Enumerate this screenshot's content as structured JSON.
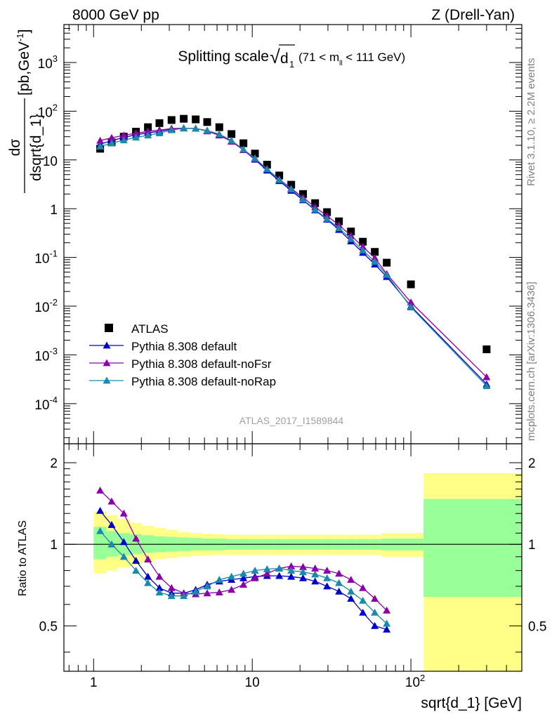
{
  "header": {
    "beam": "8000 GeV pp",
    "process": "Z (Drell-Yan)",
    "title_main": "Splitting scale",
    "title_sqrt_sym": "√",
    "title_d": "d",
    "title_d_sub": "1",
    "title_range_pre": "(71 < m",
    "title_range_sub": "ll",
    "title_range_post": " < 111 GeV)"
  },
  "side_labels": {
    "rivet": "Rivet 3.1.10, ≥ 2.2M events",
    "mcplots": "mcplots.cern.ch [arXiv:1306.3436]"
  },
  "watermark": "ATLAS_2017_I1589844",
  "colors": {
    "atlas": "#000000",
    "default": "#0000cc",
    "noFsr": "#8b00a8",
    "noRap": "#1a8aaa",
    "band_inner": "#99ff99",
    "band_outer": "#ffff88"
  },
  "chart_data": [
    {
      "type": "scatter",
      "panel": "main",
      "ylabel_num": "dσ",
      "ylabel_den": "dsqrt{d_1}",
      "ylabel_unit_pre": "[pb,GeV",
      "ylabel_unit_sup": "-1",
      "ylabel_unit_post": "]",
      "xlim": [
        0.65,
        500
      ],
      "ylim": [
        1.5e-05,
        6000
      ],
      "xscale": "log",
      "yscale": "log",
      "y_ticks": [
        {
          "base": "10",
          "exp": "-4",
          "v": 0.0001
        },
        {
          "base": "10",
          "exp": "-3",
          "v": 0.001
        },
        {
          "base": "10",
          "exp": "-2",
          "v": 0.01
        },
        {
          "base": "10",
          "exp": "-1",
          "v": 0.1
        },
        {
          "base": "1",
          "exp": "",
          "v": 1
        },
        {
          "base": "10",
          "exp": "",
          "v": 10
        },
        {
          "base": "10",
          "exp": "2",
          "v": 100
        },
        {
          "base": "10",
          "exp": "3",
          "v": 1000
        }
      ],
      "legend_position": "bottom-left",
      "series": [
        {
          "name": "ATLAS",
          "color": "#000000",
          "marker": "square",
          "line": false,
          "x": [
            1.1,
            1.3,
            1.55,
            1.85,
            2.2,
            2.6,
            3.1,
            3.7,
            4.4,
            5.2,
            6.2,
            7.4,
            8.8,
            10.4,
            12.4,
            14.8,
            17.6,
            20.9,
            24.9,
            29.6,
            35.2,
            41.9,
            49.8,
            59.2,
            70.4,
            100,
            300
          ],
          "y": [
            17,
            23,
            30,
            38,
            47,
            57,
            66,
            70,
            68,
            60,
            47,
            34,
            22,
            13.5,
            8.0,
            4.8,
            3.1,
            2.0,
            1.3,
            0.85,
            0.55,
            0.34,
            0.21,
            0.13,
            0.078,
            0.028,
            0.0013
          ]
        },
        {
          "name": "Pythia 8.308 default",
          "color": "#0000cc",
          "marker": "triangle",
          "line": true,
          "x": [
            1.1,
            1.3,
            1.55,
            1.85,
            2.2,
            2.6,
            3.1,
            3.7,
            4.4,
            5.2,
            6.2,
            7.4,
            8.8,
            10.4,
            12.4,
            14.8,
            17.6,
            20.9,
            24.9,
            29.6,
            35.2,
            41.9,
            49.8,
            59.2,
            70.4,
            100,
            300
          ],
          "y": [
            21,
            25,
            29,
            33,
            36,
            38.5,
            43,
            45,
            44,
            40,
            33,
            24,
            16,
            10.2,
            6.1,
            3.7,
            2.35,
            1.5,
            0.93,
            0.6,
            0.37,
            0.215,
            0.125,
            0.072,
            0.04,
            0.01,
            0.00025
          ]
        },
        {
          "name": "Pythia 8.308 default-noFsr",
          "color": "#8b00a8",
          "marker": "triangle",
          "line": true,
          "x": [
            1.1,
            1.3,
            1.55,
            1.85,
            2.2,
            2.6,
            3.1,
            3.7,
            4.4,
            5.2,
            6.2,
            7.4,
            8.8,
            10.4,
            12.4,
            14.8,
            17.6,
            20.9,
            24.9,
            29.6,
            35.2,
            41.9,
            49.8,
            59.2,
            70.4,
            100,
            300
          ],
          "y": [
            25,
            28.5,
            32,
            35.5,
            38.5,
            41,
            44,
            45,
            44,
            39,
            32,
            24,
            16,
            10.4,
            6.5,
            4.0,
            2.6,
            1.7,
            1.08,
            0.71,
            0.46,
            0.28,
            0.165,
            0.098,
            0.046,
            0.012,
            0.00035
          ]
        },
        {
          "name": "Pythia 8.308 default-noRap",
          "color": "#1a8aaa",
          "marker": "triangle",
          "line": true,
          "x": [
            1.1,
            1.3,
            1.55,
            1.85,
            2.2,
            2.6,
            3.1,
            3.7,
            4.4,
            5.2,
            6.2,
            7.4,
            8.8,
            10.4,
            12.4,
            14.8,
            17.6,
            20.9,
            24.9,
            29.6,
            35.2,
            41.9,
            49.8,
            59.2,
            70.4,
            100,
            300
          ],
          "y": [
            19,
            22,
            25.5,
            29,
            32,
            35.5,
            41,
            44.5,
            44,
            40,
            34,
            25,
            16.5,
            10.9,
            6.5,
            3.9,
            2.5,
            1.55,
            0.96,
            0.62,
            0.4,
            0.24,
            0.14,
            0.082,
            0.044,
            0.0095,
            0.00023
          ]
        }
      ]
    },
    {
      "type": "line",
      "panel": "ratio",
      "ylabel": "Ratio to ATLAS",
      "xlabel": "sqrt{d_1} [GeV]",
      "xlim": [
        0.65,
        500
      ],
      "ylim": [
        0.34,
        2.35
      ],
      "xscale": "log",
      "yscale": "log",
      "y_ticks": [
        {
          "label": "0.5",
          "v": 0.5
        },
        {
          "label": "1",
          "v": 1
        },
        {
          "label": "2",
          "v": 2
        }
      ],
      "x_ticks": [
        {
          "base": "1",
          "exp": "",
          "v": 1
        },
        {
          "base": "10",
          "exp": "",
          "v": 10
        },
        {
          "base": "10",
          "exp": "2",
          "v": 100
        }
      ],
      "bands": {
        "edges": [
          1,
          1.2,
          1.42,
          1.7,
          2.02,
          2.4,
          2.85,
          3.4,
          4.05,
          4.8,
          5.7,
          6.8,
          8.1,
          9.6,
          11.4,
          13.6,
          16.2,
          19.3,
          22.9,
          27.3,
          32.5,
          38.6,
          45.9,
          54.6,
          65,
          77.4,
          120,
          500
        ],
        "inner_lo": [
          0.88,
          0.9,
          0.91,
          0.92,
          0.93,
          0.935,
          0.94,
          0.945,
          0.95,
          0.95,
          0.95,
          0.955,
          0.955,
          0.955,
          0.955,
          0.955,
          0.955,
          0.955,
          0.955,
          0.955,
          0.955,
          0.955,
          0.955,
          0.955,
          0.95,
          0.95,
          0.64
        ],
        "inner_hi": [
          1.16,
          1.12,
          1.1,
          1.09,
          1.08,
          1.07,
          1.065,
          1.06,
          1.055,
          1.05,
          1.05,
          1.045,
          1.045,
          1.045,
          1.045,
          1.045,
          1.045,
          1.045,
          1.045,
          1.045,
          1.045,
          1.045,
          1.045,
          1.045,
          1.05,
          1.05,
          1.47
        ],
        "outer_lo": [
          0.78,
          0.8,
          0.82,
          0.84,
          0.86,
          0.88,
          0.89,
          0.9,
          0.905,
          0.91,
          0.915,
          0.915,
          0.915,
          0.915,
          0.915,
          0.915,
          0.915,
          0.915,
          0.915,
          0.915,
          0.915,
          0.915,
          0.915,
          0.915,
          0.9,
          0.9,
          0.34
        ],
        "outer_hi": [
          1.32,
          1.28,
          1.24,
          1.2,
          1.17,
          1.15,
          1.13,
          1.11,
          1.1,
          1.095,
          1.09,
          1.085,
          1.085,
          1.085,
          1.085,
          1.085,
          1.085,
          1.085,
          1.085,
          1.085,
          1.085,
          1.085,
          1.085,
          1.085,
          1.1,
          1.1,
          1.83
        ]
      },
      "series": [
        {
          "name": "Pythia 8.308 default",
          "color": "#0000cc",
          "x": [
            1.1,
            1.3,
            1.55,
            1.85,
            2.2,
            2.6,
            3.1,
            3.7,
            4.4,
            5.2,
            6.2,
            7.4,
            8.8,
            10.4,
            12.4,
            14.8,
            17.6,
            20.9,
            24.9,
            29.6,
            35.2,
            41.9,
            49.8,
            59.2,
            70.4
          ],
          "y": [
            1.33,
            1.18,
            1.02,
            0.87,
            0.76,
            0.69,
            0.66,
            0.66,
            0.68,
            0.71,
            0.73,
            0.74,
            0.75,
            0.76,
            0.765,
            0.765,
            0.76,
            0.75,
            0.73,
            0.7,
            0.67,
            0.63,
            0.56,
            0.5,
            0.485
          ]
        },
        {
          "name": "Pythia 8.308 default-noFsr",
          "color": "#8b00a8",
          "x": [
            1.1,
            1.3,
            1.55,
            1.85,
            2.2,
            2.6,
            3.1,
            3.7,
            4.4,
            5.2,
            6.2,
            7.4,
            8.8,
            10.4,
            12.4,
            14.8,
            17.6,
            20.9,
            24.9,
            29.6,
            35.2,
            41.9,
            49.8,
            59.2,
            70.4
          ],
          "y": [
            1.58,
            1.44,
            1.3,
            1.05,
            0.88,
            0.76,
            0.69,
            0.66,
            0.655,
            0.66,
            0.665,
            0.68,
            0.71,
            0.75,
            0.78,
            0.815,
            0.83,
            0.825,
            0.815,
            0.8,
            0.78,
            0.74,
            0.69,
            0.63,
            0.57
          ]
        },
        {
          "name": "Pythia 8.308 default-noRap",
          "color": "#1a8aaa",
          "x": [
            1.1,
            1.3,
            1.55,
            1.85,
            2.2,
            2.6,
            3.1,
            3.7,
            4.4,
            5.2,
            6.2,
            7.4,
            8.8,
            10.4,
            12.4,
            14.8,
            17.6,
            20.9,
            24.9,
            29.6,
            35.2,
            41.9,
            49.8,
            59.2,
            70.4
          ],
          "y": [
            1.12,
            1.0,
            0.9,
            0.8,
            0.72,
            0.665,
            0.645,
            0.645,
            0.67,
            0.7,
            0.74,
            0.76,
            0.78,
            0.8,
            0.81,
            0.815,
            0.8,
            0.79,
            0.775,
            0.75,
            0.72,
            0.67,
            0.62,
            0.56,
            0.51
          ]
        }
      ]
    }
  ]
}
